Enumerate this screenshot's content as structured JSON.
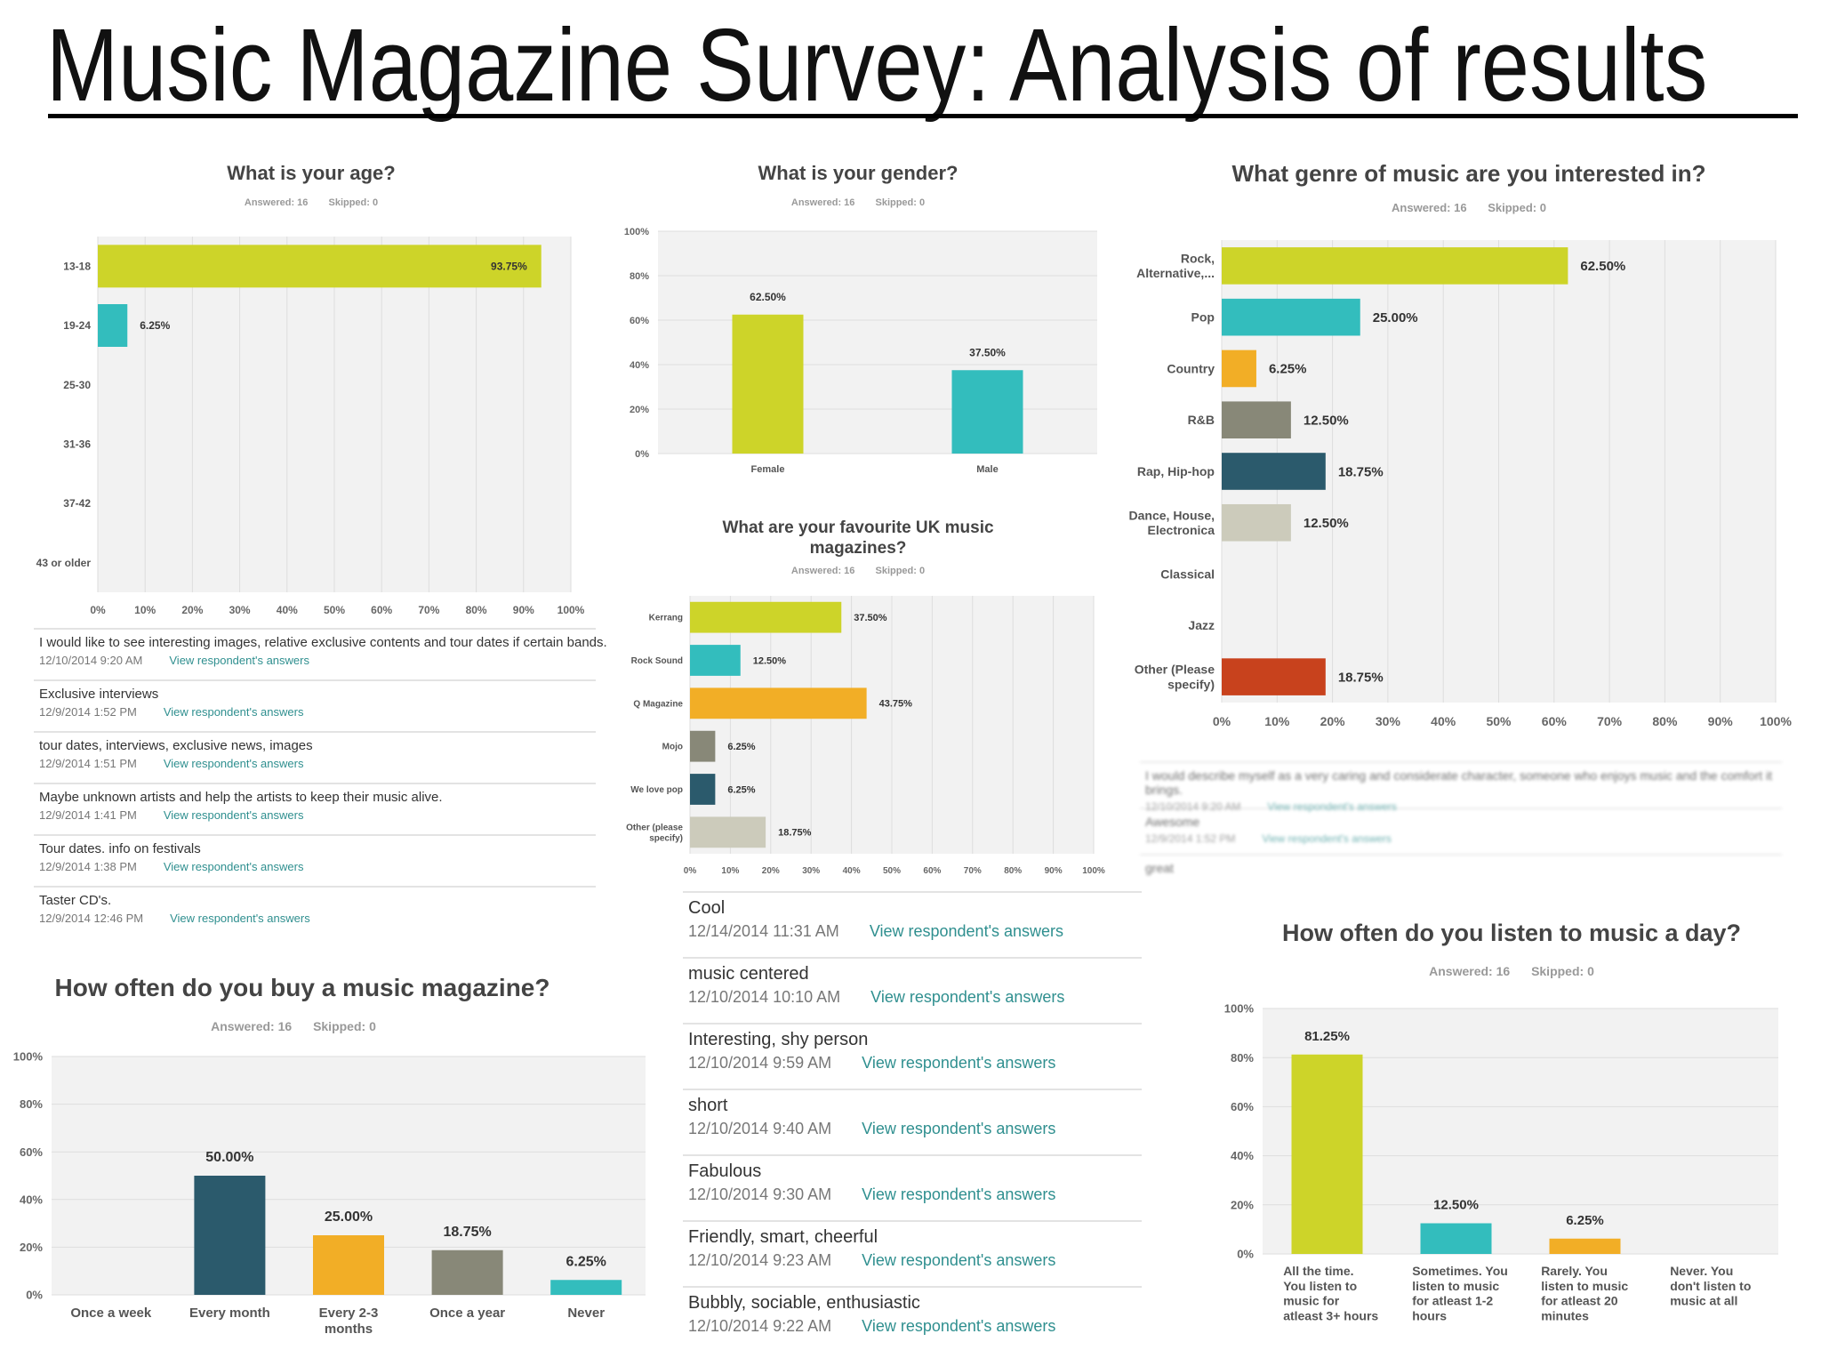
{
  "title": "Music Magazine Survey: Analysis of results",
  "age": {
    "question": "What is your age?",
    "answered": "Answered: 16",
    "skipped": "Skipped: 0"
  },
  "gender": {
    "question": "What is your gender?",
    "answered": "Answered: 16",
    "skipped": "Skipped: 0"
  },
  "genre": {
    "question": "What genre of music are you interested in?",
    "answered": "Answered: 16",
    "skipped": "Skipped: 0"
  },
  "magazines": {
    "question_line1": "What are your favourite UK music",
    "question_line2": "magazines?",
    "answered": "Answered: 16",
    "skipped": "Skipped: 0"
  },
  "buy": {
    "question": "How often do you buy a music magazine?",
    "answered": "Answered: 16",
    "skipped": "Skipped: 0"
  },
  "listen": {
    "question": "How often do you listen to music a day?",
    "answered": "Answered: 16",
    "skipped": "Skipped: 0"
  },
  "age_comments": [
    {
      "text": "I would like to see interesting images, relative exclusive contents and tour dates if certain bands.",
      "date": "12/10/2014 9:20 AM",
      "link": "View respondent's answers"
    },
    {
      "text": "Exclusive interviews",
      "date": "12/9/2014 1:52 PM",
      "link": "View respondent's answers"
    },
    {
      "text": "tour dates, interviews, exclusive news, images",
      "date": "12/9/2014 1:51 PM",
      "link": "View respondent's answers"
    },
    {
      "text": "Maybe unknown artists and help the artists to keep their music alive.",
      "date": "12/9/2014 1:41 PM",
      "link": "View respondent's answers"
    },
    {
      "text": "Tour dates. info on festivals",
      "date": "12/9/2014 1:38 PM",
      "link": "View respondent's answers"
    },
    {
      "text": "Taster CD's.",
      "date": "12/9/2014 12:46 PM",
      "link": "View respondent's answers"
    }
  ],
  "middle_comments": [
    {
      "text": "Cool",
      "date": "12/14/2014 11:31 AM",
      "link": "View respondent's answers"
    },
    {
      "text": "music centered",
      "date": "12/10/2014 10:10 AM",
      "link": "View respondent's answers"
    },
    {
      "text": "Interesting, shy person",
      "date": "12/10/2014 9:59 AM",
      "link": "View respondent's answers"
    },
    {
      "text": "short",
      "date": "12/10/2014 9:40 AM",
      "link": "View respondent's answers"
    },
    {
      "text": "Fabulous",
      "date": "12/10/2014 9:30 AM",
      "link": "View respondent's answers"
    },
    {
      "text": "Friendly, smart, cheerful",
      "date": "12/10/2014 9:23 AM",
      "link": "View respondent's answers"
    },
    {
      "text": "Bubbly, sociable, enthusiastic",
      "date": "12/10/2014 9:22 AM",
      "link": "View respondent's answers"
    }
  ],
  "genre_comments": [
    {
      "text": "I would describe myself as a very caring and considerate character, someone who enjoys music and the comfort it brings.",
      "date": "12/10/2014 9:20 AM",
      "link": "View respondent's answers"
    },
    {
      "text": "Awesome",
      "date": "12/9/2014 1:52 PM",
      "link": "View respondent's answers"
    },
    {
      "text": "great",
      "date": "",
      "link": ""
    }
  ],
  "colors": {
    "lime": "#cdd429",
    "teal": "#33bdbd",
    "orange": "#f2ae26",
    "olive": "#888878",
    "navy": "#2b5a6c",
    "beige": "#cccbbb",
    "rust": "#c8421d",
    "plot_bg": "#f2f2f2",
    "grid": "#dddddd",
    "link": "#2f8f8f"
  },
  "chart_data": [
    {
      "id": "age",
      "type": "bar",
      "orientation": "horizontal",
      "title": "What is your age?",
      "categories": [
        "13-18",
        "19-24",
        "25-30",
        "31-36",
        "37-42",
        "43 or older"
      ],
      "values": [
        93.75,
        6.25,
        0,
        0,
        0,
        0
      ],
      "labels": [
        "93.75%",
        "6.25%",
        "",
        "",
        "",
        ""
      ],
      "colors": [
        "#cdd429",
        "#33bdbd",
        "",
        "",
        "",
        ""
      ],
      "ticks": [
        "0%",
        "10%",
        "20%",
        "30%",
        "40%",
        "50%",
        "60%",
        "70%",
        "80%",
        "90%",
        "100%"
      ],
      "xlim": [
        0,
        100
      ],
      "grid": true
    },
    {
      "id": "gender",
      "type": "bar",
      "orientation": "vertical",
      "title": "What is your gender?",
      "categories": [
        "Female",
        "Male"
      ],
      "values": [
        62.5,
        37.5
      ],
      "labels": [
        "62.50%",
        "37.50%"
      ],
      "colors": [
        "#cdd429",
        "#33bdbd"
      ],
      "ticks": [
        "0%",
        "20%",
        "40%",
        "60%",
        "80%",
        "100%"
      ],
      "ylim": [
        0,
        100
      ],
      "grid": true
    },
    {
      "id": "genre",
      "type": "bar",
      "orientation": "horizontal",
      "title": "What genre of music are you interested in?",
      "categories": [
        [
          "Rock,",
          "Alternative,..."
        ],
        [
          "Pop"
        ],
        [
          "Country"
        ],
        [
          "R&B"
        ],
        [
          "Rap, Hip-hop"
        ],
        [
          "Dance, House,",
          "Electronica"
        ],
        [
          "Classical"
        ],
        [
          "Jazz"
        ],
        [
          "Other (Please",
          "specify)"
        ]
      ],
      "values": [
        62.5,
        25,
        6.25,
        12.5,
        18.75,
        12.5,
        0,
        0,
        18.75
      ],
      "labels": [
        "62.50%",
        "25.00%",
        "6.25%",
        "12.50%",
        "18.75%",
        "12.50%",
        "",
        "",
        "18.75%"
      ],
      "colors": [
        "#cdd429",
        "#33bdbd",
        "#f2ae26",
        "#888878",
        "#2b5a6c",
        "#cccbbb",
        "",
        "",
        "#c8421d"
      ],
      "ticks": [
        "0%",
        "10%",
        "20%",
        "30%",
        "40%",
        "50%",
        "60%",
        "70%",
        "80%",
        "90%",
        "100%"
      ],
      "xlim": [
        0,
        100
      ],
      "grid": true
    },
    {
      "id": "magazines",
      "type": "bar",
      "orientation": "horizontal",
      "title": "What are your favourite UK music magazines?",
      "categories": [
        [
          "Kerrang"
        ],
        [
          "Rock Sound"
        ],
        [
          "Q Magazine"
        ],
        [
          "Mojo"
        ],
        [
          "We love pop"
        ],
        [
          "Other (please",
          "specify)"
        ]
      ],
      "values": [
        37.5,
        12.5,
        43.75,
        6.25,
        6.25,
        18.75
      ],
      "labels": [
        "37.50%",
        "12.50%",
        "43.75%",
        "6.25%",
        "6.25%",
        "18.75%"
      ],
      "colors": [
        "#cdd429",
        "#33bdbd",
        "#f2ae26",
        "#888878",
        "#2b5a6c",
        "#cccbbb"
      ],
      "ticks": [
        "0%",
        "10%",
        "20%",
        "30%",
        "40%",
        "50%",
        "60%",
        "70%",
        "80%",
        "90%",
        "100%"
      ],
      "xlim": [
        0,
        100
      ],
      "grid": true
    },
    {
      "id": "buy",
      "type": "bar",
      "orientation": "vertical",
      "title": "How often do you buy a music magazine?",
      "categories": [
        [
          "Once a week"
        ],
        [
          "Every month"
        ],
        [
          "Every 2-3",
          "months"
        ],
        [
          "Once a year"
        ],
        [
          "Never"
        ]
      ],
      "values": [
        0,
        50,
        25,
        18.75,
        6.25
      ],
      "labels": [
        "",
        "50.00%",
        "25.00%",
        "18.75%",
        "6.25%"
      ],
      "colors": [
        "",
        "#2b5a6c",
        "#f2ae26",
        "#888878",
        "#33bdbd"
      ],
      "ticks": [
        "0%",
        "20%",
        "40%",
        "60%",
        "80%",
        "100%"
      ],
      "ylim": [
        0,
        100
      ],
      "grid": true
    },
    {
      "id": "listen",
      "type": "bar",
      "orientation": "vertical",
      "title": "How often do you listen to music a day?",
      "categories": [
        [
          "All the time.",
          "You listen to",
          "music for",
          "atleast 3+ hours"
        ],
        [
          "Sometimes. You",
          "listen to music",
          "for atleast 1-2",
          "hours"
        ],
        [
          "Rarely. You",
          "listen to music",
          "for atleast 20",
          "minutes"
        ],
        [
          "Never. You",
          "don't listen to",
          "music at all"
        ]
      ],
      "values": [
        81.25,
        12.5,
        6.25,
        0
      ],
      "labels": [
        "81.25%",
        "12.50%",
        "6.25%",
        ""
      ],
      "colors": [
        "#cdd429",
        "#33bdbd",
        "#f2ae26",
        ""
      ],
      "ticks": [
        "0%",
        "20%",
        "40%",
        "60%",
        "80%",
        "100%"
      ],
      "ylim": [
        0,
        100
      ],
      "grid": true
    }
  ]
}
